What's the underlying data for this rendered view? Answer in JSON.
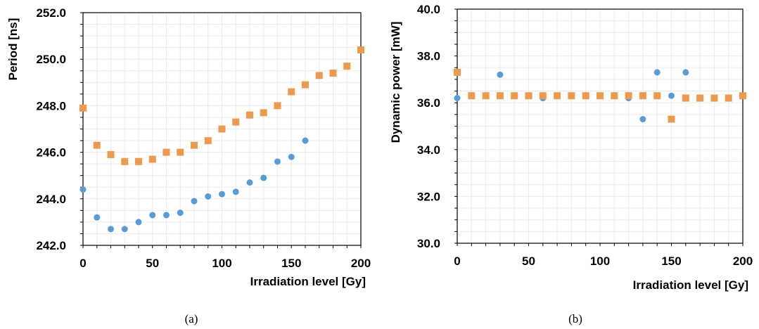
{
  "chart_data": [
    {
      "type": "scatter",
      "caption": "(a)",
      "xlabel": "Irradiation level [Gy]",
      "ylabel": "Period [ns]",
      "xlim": [
        0,
        200
      ],
      "ylim": [
        242.0,
        252.0
      ],
      "x_ticks": [
        "0",
        "50",
        "100",
        "150",
        "200"
      ],
      "y_ticks": [
        "242.0",
        "244.0",
        "246.0",
        "248.0",
        "250.0",
        "252.0"
      ],
      "grid": true,
      "legend": "none",
      "series": [
        {
          "marker": "circle",
          "color": "#5B9BD5",
          "points": [
            [
              0,
              244.4
            ],
            [
              10,
              243.2
            ],
            [
              20,
              242.7
            ],
            [
              30,
              242.7
            ],
            [
              40,
              243.0
            ],
            [
              50,
              243.3
            ],
            [
              60,
              243.3
            ],
            [
              70,
              243.4
            ],
            [
              80,
              243.9
            ],
            [
              90,
              244.1
            ],
            [
              100,
              244.2
            ],
            [
              110,
              244.3
            ],
            [
              120,
              244.7
            ],
            [
              130,
              244.9
            ],
            [
              140,
              245.6
            ],
            [
              150,
              245.8
            ],
            [
              160,
              246.5
            ]
          ]
        },
        {
          "marker": "square",
          "color": "#ED9A4F",
          "points": [
            [
              0,
              247.9
            ],
            [
              10,
              246.3
            ],
            [
              20,
              245.9
            ],
            [
              30,
              245.6
            ],
            [
              40,
              245.6
            ],
            [
              50,
              245.7
            ],
            [
              60,
              246.0
            ],
            [
              70,
              246.0
            ],
            [
              80,
              246.3
            ],
            [
              90,
              246.5
            ],
            [
              100,
              247.0
            ],
            [
              110,
              247.3
            ],
            [
              120,
              247.6
            ],
            [
              130,
              247.7
            ],
            [
              140,
              248.0
            ],
            [
              150,
              248.6
            ],
            [
              160,
              248.9
            ],
            [
              170,
              249.3
            ],
            [
              180,
              249.4
            ],
            [
              190,
              249.7
            ],
            [
              200,
              250.4
            ]
          ]
        }
      ]
    },
    {
      "type": "scatter",
      "caption": "(b)",
      "xlabel": "Irradiation level [Gy]",
      "ylabel": "Dynamic power [mW]",
      "xlim": [
        0,
        200
      ],
      "ylim": [
        30.0,
        40.0
      ],
      "x_ticks": [
        "0",
        "50",
        "100",
        "150",
        "200"
      ],
      "y_ticks": [
        "30.0",
        "32.0",
        "34.0",
        "36.0",
        "38.0",
        "40.0"
      ],
      "grid": true,
      "legend": "none",
      "series": [
        {
          "marker": "circle",
          "color": "#5B9BD5",
          "points": [
            [
              0,
              36.2
            ],
            [
              10,
              36.3
            ],
            [
              20,
              36.3
            ],
            [
              30,
              37.2
            ],
            [
              40,
              36.3
            ],
            [
              50,
              36.3
            ],
            [
              60,
              36.2
            ],
            [
              70,
              36.3
            ],
            [
              80,
              36.3
            ],
            [
              90,
              36.3
            ],
            [
              100,
              36.3
            ],
            [
              110,
              36.3
            ],
            [
              120,
              36.2
            ],
            [
              130,
              35.3
            ],
            [
              140,
              37.3
            ],
            [
              150,
              36.3
            ],
            [
              160,
              37.3
            ]
          ]
        },
        {
          "marker": "square",
          "color": "#ED9A4F",
          "points": [
            [
              0,
              37.3
            ],
            [
              10,
              36.3
            ],
            [
              20,
              36.3
            ],
            [
              30,
              36.3
            ],
            [
              40,
              36.3
            ],
            [
              50,
              36.3
            ],
            [
              60,
              36.3
            ],
            [
              70,
              36.3
            ],
            [
              80,
              36.3
            ],
            [
              90,
              36.3
            ],
            [
              100,
              36.3
            ],
            [
              110,
              36.3
            ],
            [
              120,
              36.3
            ],
            [
              130,
              36.3
            ],
            [
              140,
              36.3
            ],
            [
              150,
              35.3
            ],
            [
              160,
              36.2
            ],
            [
              170,
              36.2
            ],
            [
              180,
              36.2
            ],
            [
              190,
              36.2
            ],
            [
              200,
              36.3
            ]
          ]
        }
      ]
    }
  ]
}
